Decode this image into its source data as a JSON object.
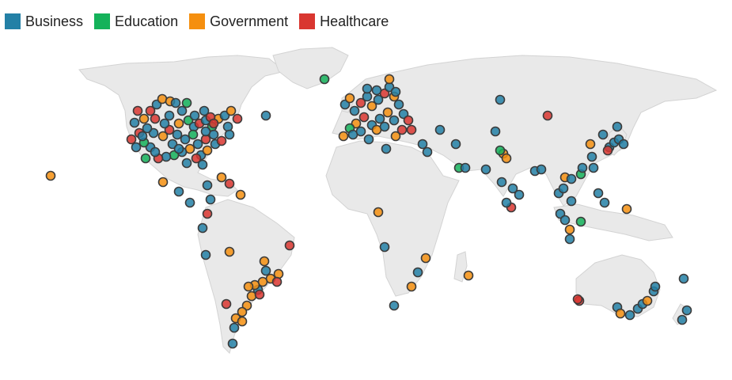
{
  "legend": [
    {
      "label": "Business",
      "color": "#2380a6"
    },
    {
      "label": "Education",
      "color": "#14b25a"
    },
    {
      "label": "Government",
      "color": "#f58f0f"
    },
    {
      "label": "Healthcare",
      "color": "#d93630"
    }
  ],
  "map": {
    "land_color": "#e9e9e9",
    "border_color": "#d3d3d3",
    "marker_categories": [
      "Business",
      "Education",
      "Government",
      "Healthcare"
    ]
  }
}
